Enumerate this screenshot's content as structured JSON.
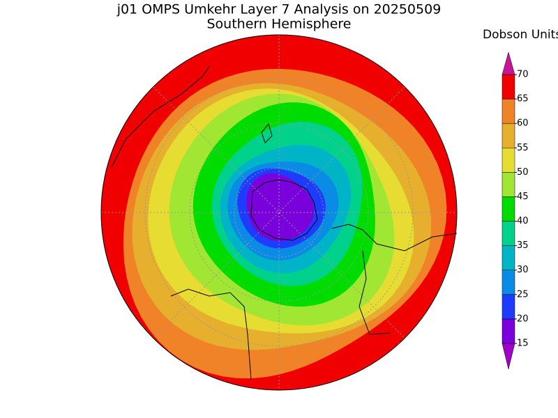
{
  "title": "j01 OMPS Umkehr Layer 7 Analysis on 20250509",
  "subtitle": "Southern Hemisphere",
  "colorbar": {
    "title": "Dobson Units",
    "ticks": [
      15,
      20,
      25,
      30,
      35,
      40,
      45,
      50,
      55,
      60,
      65,
      70
    ],
    "colors": [
      "#7a00dc",
      "#1e3cff",
      "#0a8ce6",
      "#00b4c8",
      "#00d28c",
      "#00dc00",
      "#a0e632",
      "#e6dc32",
      "#e6af2d",
      "#f08228",
      "#f00000"
    ],
    "under_color": "#a000c8",
    "over_color": "#c81496"
  }
}
